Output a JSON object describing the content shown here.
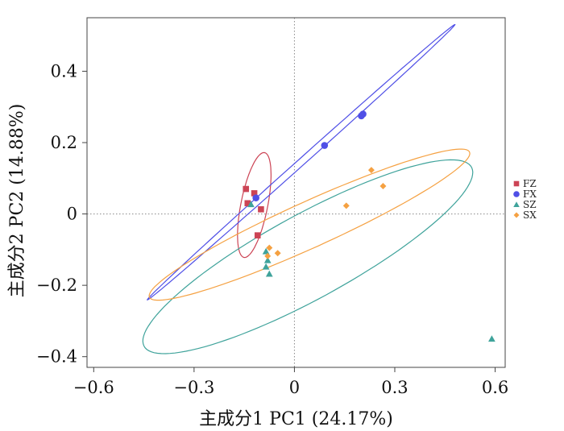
{
  "chart_data": {
    "type": "scatter",
    "title": "",
    "xlabel": "主成分1 PC1 (24.17%)",
    "ylabel": "主成分2 PC2 (14.88%)",
    "xlim": [
      -0.62,
      0.63
    ],
    "ylim": [
      -0.43,
      0.55
    ],
    "xticks": [
      "−0.6",
      "−0.3",
      "0",
      "0.3",
      "0.6"
    ],
    "xtick_values": [
      -0.6,
      -0.3,
      0,
      0.3,
      0.6
    ],
    "yticks": [
      "0.4",
      "0.2",
      "0",
      "−0.2",
      "−0.4"
    ],
    "ytick_values": [
      0.4,
      0.2,
      0,
      -0.2,
      -0.4
    ],
    "reference_lines": {
      "x": 0,
      "y": 0,
      "style": "dotted"
    },
    "legend_position": "right",
    "series": [
      {
        "name": "FZ",
        "marker": "square",
        "color": "#cc4455",
        "points": [
          [
            -0.145,
            0.07
          ],
          [
            -0.12,
            0.058
          ],
          [
            -0.1,
            0.013
          ],
          [
            -0.14,
            0.03
          ],
          [
            -0.11,
            -0.06
          ]
        ],
        "ellipse": {
          "center": [
            -0.12,
            0.025
          ],
          "rx": 0.04,
          "ry": 0.15,
          "angle_deg": -12
        }
      },
      {
        "name": "FX",
        "marker": "circle",
        "color": "#4f4fe6",
        "points": [
          [
            -0.115,
            0.045
          ],
          [
            0.09,
            0.192
          ],
          [
            0.2,
            0.275
          ],
          [
            0.205,
            0.28
          ]
        ],
        "ellipse": {
          "center": [
            0.02,
            0.145
          ],
          "rx": 0.6,
          "ry": 0.01,
          "angle_deg": 40
        }
      },
      {
        "name": "SZ",
        "marker": "triangle",
        "color": "#3fa39b",
        "points": [
          [
            -0.13,
            0.027
          ],
          [
            -0.085,
            -0.105
          ],
          [
            -0.08,
            -0.13
          ],
          [
            -0.085,
            -0.148
          ],
          [
            -0.075,
            -0.168
          ],
          [
            0.59,
            -0.35
          ]
        ],
        "ellipse": {
          "center": [
            0.04,
            -0.12
          ],
          "rx": 0.55,
          "ry": 0.12,
          "angle_deg": 27
        }
      },
      {
        "name": "SX",
        "marker": "diamond",
        "color": "#f5a142",
        "points": [
          [
            -0.075,
            -0.095
          ],
          [
            -0.05,
            -0.11
          ],
          [
            -0.08,
            -0.118
          ],
          [
            0.155,
            0.023
          ],
          [
            0.23,
            0.123
          ],
          [
            0.265,
            0.078
          ]
        ],
        "ellipse": {
          "center": [
            0.045,
            -0.03
          ],
          "rx": 0.52,
          "ry": 0.065,
          "angle_deg": 23
        }
      }
    ]
  }
}
